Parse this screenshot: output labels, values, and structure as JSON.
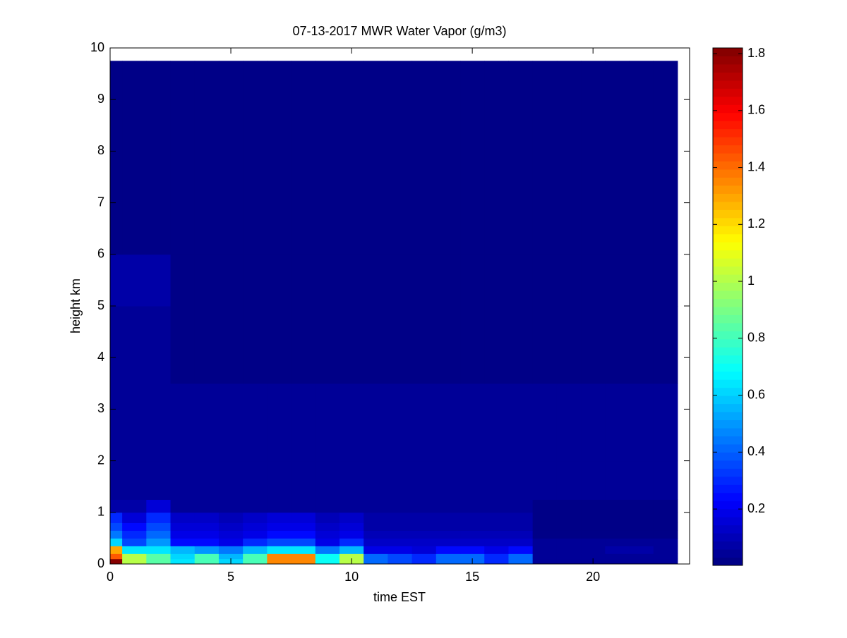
{
  "chart_data": {
    "type": "heatmap",
    "title": "07-13-2017 MWR Water Vapor (g/m3)",
    "xlabel": "time EST",
    "ylabel": "height km",
    "xlim": [
      0,
      24
    ],
    "ylim": [
      0,
      10
    ],
    "xticks": [
      0,
      5,
      10,
      15,
      20
    ],
    "yticks": [
      0,
      1,
      2,
      3,
      4,
      5,
      6,
      7,
      8,
      9,
      10
    ],
    "colormap": "jet",
    "clim": [
      0.002,
      1.82
    ],
    "cticks": [
      0.2,
      0.4,
      0.6,
      0.8,
      1,
      1.2,
      1.4,
      1.6,
      1.8
    ],
    "x_edges": [
      0,
      0.5,
      1.5,
      2.5,
      3.5,
      4.5,
      5.5,
      6.5,
      7.5,
      8.5,
      9.5,
      10.5,
      11.5,
      12.5,
      13.5,
      14.5,
      15.5,
      16.5,
      17.5,
      18.5,
      19.5,
      20.5,
      21.5,
      22.5,
      23.5
    ],
    "y_edges": [
      0,
      0.1,
      0.2,
      0.35,
      0.5,
      0.65,
      0.8,
      1.0,
      1.25,
      2,
      3.5,
      5,
      6,
      9.75
    ],
    "z": [
      [
        1.8,
        1.0,
        0.85,
        0.65,
        0.8,
        0.6,
        0.8,
        1.35,
        1.35,
        0.7,
        1.0,
        0.4,
        0.35,
        0.3,
        0.4,
        0.4,
        0.3,
        0.4,
        0.05,
        0.05,
        0.05,
        0.05,
        0.05,
        0.05
      ],
      [
        1.45,
        1.0,
        0.85,
        0.6,
        0.8,
        0.55,
        0.8,
        1.35,
        1.35,
        0.7,
        1.0,
        0.4,
        0.35,
        0.3,
        0.4,
        0.4,
        0.3,
        0.4,
        0.05,
        0.05,
        0.05,
        0.05,
        0.05,
        0.05
      ],
      [
        1.3,
        0.65,
        0.65,
        0.55,
        0.5,
        0.45,
        0.55,
        0.65,
        0.65,
        0.45,
        0.55,
        0.2,
        0.18,
        0.15,
        0.25,
        0.25,
        0.18,
        0.25,
        0.05,
        0.05,
        0.05,
        0.08,
        0.08,
        0.05
      ],
      [
        0.6,
        0.35,
        0.5,
        0.25,
        0.25,
        0.2,
        0.3,
        0.35,
        0.35,
        0.2,
        0.3,
        0.12,
        0.12,
        0.12,
        0.12,
        0.12,
        0.12,
        0.12,
        0.04,
        0.04,
        0.04,
        0.04,
        0.04,
        0.04
      ],
      [
        0.45,
        0.3,
        0.4,
        0.18,
        0.18,
        0.15,
        0.2,
        0.25,
        0.25,
        0.15,
        0.2,
        0.1,
        0.1,
        0.1,
        0.1,
        0.1,
        0.1,
        0.1,
        0.03,
        0.03,
        0.03,
        0.03,
        0.03,
        0.03
      ],
      [
        0.35,
        0.25,
        0.35,
        0.15,
        0.15,
        0.13,
        0.15,
        0.2,
        0.2,
        0.13,
        0.15,
        0.08,
        0.08,
        0.08,
        0.08,
        0.08,
        0.08,
        0.08,
        0.03,
        0.03,
        0.03,
        0.03,
        0.03,
        0.03
      ],
      [
        0.3,
        0.15,
        0.3,
        0.12,
        0.12,
        0.1,
        0.12,
        0.15,
        0.15,
        0.1,
        0.12,
        0.07,
        0.07,
        0.07,
        0.07,
        0.07,
        0.07,
        0.07,
        0.03,
        0.03,
        0.03,
        0.03,
        0.03,
        0.03
      ],
      [
        0.08,
        0.08,
        0.15,
        0.05,
        0.05,
        0.05,
        0.05,
        0.05,
        0.05,
        0.05,
        0.05,
        0.04,
        0.04,
        0.04,
        0.04,
        0.04,
        0.04,
        0.04,
        0.03,
        0.03,
        0.03,
        0.03,
        0.03,
        0.03
      ],
      [
        0.04,
        0.04,
        0.04,
        0.04,
        0.04,
        0.04,
        0.04,
        0.04,
        0.04,
        0.04,
        0.04,
        0.04,
        0.04,
        0.04,
        0.04,
        0.04,
        0.04,
        0.04,
        0.04,
        0.04,
        0.04,
        0.04,
        0.04,
        0.04
      ],
      [
        0.04,
        0.04,
        0.04,
        0.04,
        0.04,
        0.04,
        0.04,
        0.04,
        0.04,
        0.04,
        0.04,
        0.04,
        0.04,
        0.04,
        0.04,
        0.04,
        0.04,
        0.04,
        0.04,
        0.04,
        0.04,
        0.04,
        0.04,
        0.04
      ],
      [
        0.05,
        0.05,
        0.05,
        0.03,
        0.03,
        0.03,
        0.03,
        0.03,
        0.03,
        0.03,
        0.03,
        0.03,
        0.03,
        0.03,
        0.03,
        0.03,
        0.03,
        0.03,
        0.03,
        0.03,
        0.03,
        0.03,
        0.03,
        0.03
      ],
      [
        0.06,
        0.06,
        0.06,
        0.03,
        0.03,
        0.03,
        0.03,
        0.03,
        0.03,
        0.03,
        0.03,
        0.03,
        0.03,
        0.03,
        0.03,
        0.03,
        0.03,
        0.03,
        0.03,
        0.03,
        0.03,
        0.03,
        0.03,
        0.03
      ],
      [
        0.02,
        0.02,
        0.02,
        0.02,
        0.02,
        0.02,
        0.02,
        0.02,
        0.02,
        0.02,
        0.02,
        0.02,
        0.02,
        0.02,
        0.02,
        0.02,
        0.02,
        0.02,
        0.02,
        0.02,
        0.02,
        0.02,
        0.02,
        0.02
      ]
    ]
  }
}
